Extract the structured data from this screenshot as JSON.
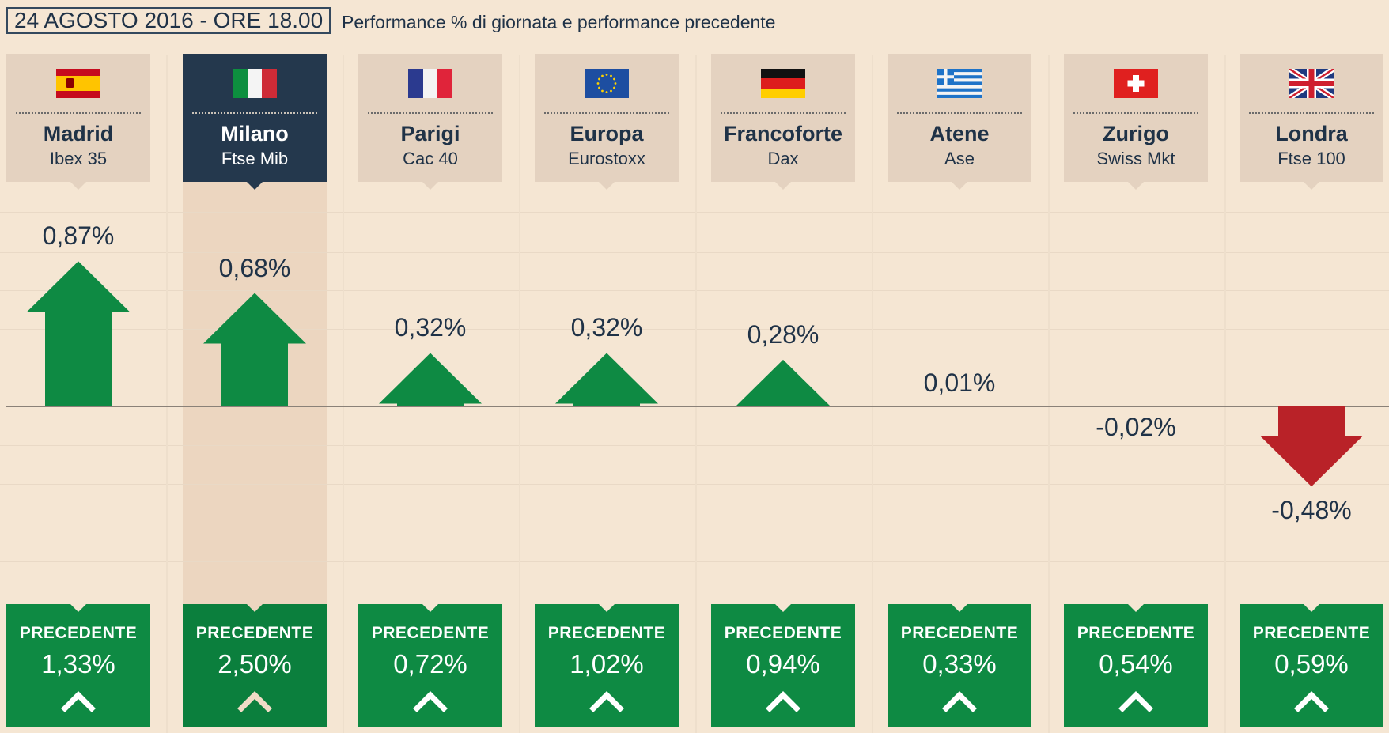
{
  "title": "24 AGOSTO 2016 - ORE 18.00",
  "subtitle": "Performance % di giornata e performance precedente",
  "prev_label": "PRECEDENTE",
  "colors": {
    "up": "#0e8a43",
    "down": "#b92228",
    "header_bg": "#e4d2c0",
    "header_highlight": "#24384d",
    "background": "#f5e6d3"
  },
  "markets": [
    {
      "city": "Madrid",
      "index": "Ibex 35",
      "flag": "spain-flag-icon",
      "pct": "0,87%",
      "prev": "1,33%",
      "highlight": false
    },
    {
      "city": "Milano",
      "index": "Ftse Mib",
      "flag": "italy-flag-icon",
      "pct": "0,68%",
      "prev": "2,50%",
      "highlight": true
    },
    {
      "city": "Parigi",
      "index": "Cac 40",
      "flag": "france-flag-icon",
      "pct": "0,32%",
      "prev": "0,72%",
      "highlight": false
    },
    {
      "city": "Europa",
      "index": "Eurostoxx",
      "flag": "eu-flag-icon",
      "pct": "0,32%",
      "prev": "1,02%",
      "highlight": false
    },
    {
      "city": "Francoforte",
      "index": "Dax",
      "flag": "germany-flag-icon",
      "pct": "0,28%",
      "prev": "0,94%",
      "highlight": false
    },
    {
      "city": "Atene",
      "index": "Ase",
      "flag": "greece-flag-icon",
      "pct": "0,01%",
      "prev": "0,33%",
      "highlight": false
    },
    {
      "city": "Zurigo",
      "index": "Swiss Mkt",
      "flag": "switzerland-flag-icon",
      "pct": "-0,02%",
      "prev": "0,54%",
      "highlight": false
    },
    {
      "city": "Londra",
      "index": "Ftse 100",
      "flag": "uk-flag-icon",
      "pct": "-0,48%",
      "prev": "0,59%",
      "highlight": false
    }
  ],
  "chart_data": {
    "type": "bar",
    "categories": [
      "Madrid",
      "Milano",
      "Parigi",
      "Europa",
      "Francoforte",
      "Atene",
      "Zurigo",
      "Londra"
    ],
    "values": [
      0.87,
      0.68,
      0.32,
      0.32,
      0.28,
      0.01,
      -0.02,
      -0.48
    ],
    "previous": [
      1.33,
      2.5,
      0.72,
      1.02,
      0.94,
      0.33,
      0.54,
      0.59
    ],
    "title": "24 AGOSTO 2016 - ORE 18.00",
    "subtitle": "Performance % di giornata e performance precedente",
    "ylim": [
      -0.6,
      1.1
    ],
    "grid": true
  }
}
